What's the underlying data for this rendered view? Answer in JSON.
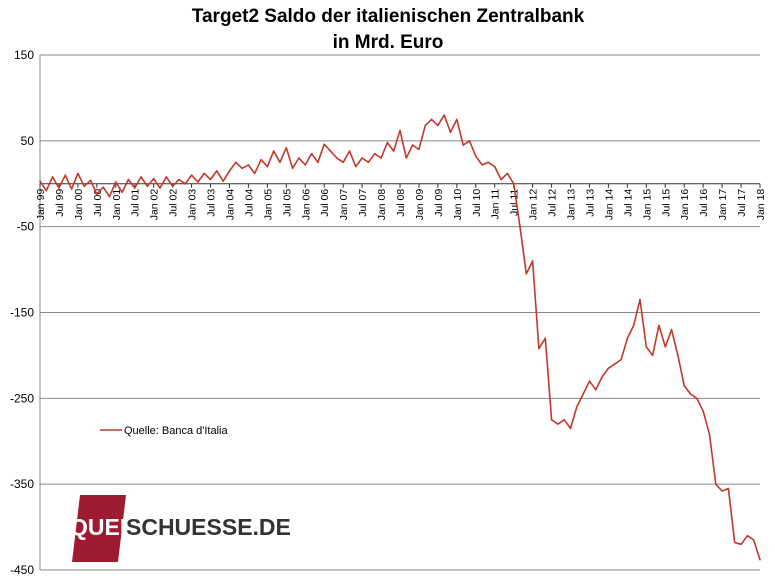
{
  "chart_data": {
    "type": "line",
    "title": "Target2 Saldo der italienischen Zentralbank",
    "subtitle": "in Mrd. Euro",
    "ylim": [
      -450,
      150
    ],
    "yticks": [
      150,
      50,
      -50,
      -150,
      -250,
      -350,
      -450
    ],
    "grid": "horizontal",
    "legend_position": "left",
    "x_tick_labels": [
      "Jan 99",
      "Jul 99",
      "Jan 00",
      "Jul 00",
      "Jan 01",
      "Jul 01",
      "Jan 02",
      "Jul 02",
      "Jan 03",
      "Jul 03",
      "Jan 04",
      "Jul 04",
      "Jan 05",
      "Jul 05",
      "Jan 06",
      "Jul 06",
      "Jan 07",
      "Jul 07",
      "Jan 08",
      "Jul 08",
      "Jan 09",
      "Jul 09",
      "Jan 10",
      "Jul 10",
      "Jan 11",
      "Jul 11",
      "Jan 12",
      "Jul 12",
      "Jan 13",
      "Jul 13",
      "Jan 14",
      "Jul 14",
      "Jan 15",
      "Jul 15",
      "Jan 16",
      "Jul 16",
      "Jan 17",
      "Jul 17",
      "Jan 18"
    ],
    "series": [
      {
        "name": "Quelle: Banca d'Italia",
        "color": "#c0392b",
        "points": [
          [
            "1999-01",
            3
          ],
          [
            "1999-03",
            -8
          ],
          [
            "1999-05",
            8
          ],
          [
            "1999-07",
            -5
          ],
          [
            "1999-09",
            10
          ],
          [
            "1999-11",
            -6
          ],
          [
            "2000-01",
            12
          ],
          [
            "2000-03",
            -3
          ],
          [
            "2000-05",
            4
          ],
          [
            "2000-07",
            -12
          ],
          [
            "2000-09",
            -4
          ],
          [
            "2000-11",
            -15
          ],
          [
            "2001-01",
            2
          ],
          [
            "2001-03",
            -10
          ],
          [
            "2001-05",
            5
          ],
          [
            "2001-07",
            -5
          ],
          [
            "2001-09",
            8
          ],
          [
            "2001-11",
            -3
          ],
          [
            "2002-01",
            6
          ],
          [
            "2002-03",
            -5
          ],
          [
            "2002-05",
            8
          ],
          [
            "2002-07",
            -3
          ],
          [
            "2002-09",
            5
          ],
          [
            "2002-11",
            0
          ],
          [
            "2003-01",
            10
          ],
          [
            "2003-03",
            2
          ],
          [
            "2003-05",
            12
          ],
          [
            "2003-07",
            5
          ],
          [
            "2003-09",
            15
          ],
          [
            "2003-11",
            3
          ],
          [
            "2004-01",
            15
          ],
          [
            "2004-03",
            25
          ],
          [
            "2004-05",
            18
          ],
          [
            "2004-07",
            22
          ],
          [
            "2004-09",
            12
          ],
          [
            "2004-11",
            28
          ],
          [
            "2005-01",
            20
          ],
          [
            "2005-03",
            38
          ],
          [
            "2005-05",
            25
          ],
          [
            "2005-07",
            42
          ],
          [
            "2005-09",
            18
          ],
          [
            "2005-11",
            30
          ],
          [
            "2006-01",
            22
          ],
          [
            "2006-03",
            35
          ],
          [
            "2006-05",
            25
          ],
          [
            "2006-07",
            46
          ],
          [
            "2006-09",
            38
          ],
          [
            "2006-11",
            30
          ],
          [
            "2007-01",
            25
          ],
          [
            "2007-03",
            38
          ],
          [
            "2007-05",
            20
          ],
          [
            "2007-07",
            30
          ],
          [
            "2007-09",
            25
          ],
          [
            "2007-11",
            35
          ],
          [
            "2008-01",
            30
          ],
          [
            "2008-03",
            48
          ],
          [
            "2008-05",
            38
          ],
          [
            "2008-07",
            62
          ],
          [
            "2008-09",
            30
          ],
          [
            "2008-11",
            45
          ],
          [
            "2009-01",
            40
          ],
          [
            "2009-03",
            68
          ],
          [
            "2009-05",
            75
          ],
          [
            "2009-07",
            68
          ],
          [
            "2009-09",
            80
          ],
          [
            "2009-11",
            60
          ],
          [
            "2010-01",
            75
          ],
          [
            "2010-03",
            45
          ],
          [
            "2010-05",
            50
          ],
          [
            "2010-07",
            32
          ],
          [
            "2010-09",
            22
          ],
          [
            "2010-11",
            25
          ],
          [
            "2011-01",
            20
          ],
          [
            "2011-03",
            5
          ],
          [
            "2011-05",
            12
          ],
          [
            "2011-07",
            0
          ],
          [
            "2011-09",
            -50
          ],
          [
            "2011-11",
            -105
          ],
          [
            "2012-01",
            -90
          ],
          [
            "2012-03",
            -192
          ],
          [
            "2012-05",
            -180
          ],
          [
            "2012-07",
            -275
          ],
          [
            "2012-09",
            -280
          ],
          [
            "2012-11",
            -275
          ],
          [
            "2013-01",
            -285
          ],
          [
            "2013-03",
            -260
          ],
          [
            "2013-05",
            -245
          ],
          [
            "2013-07",
            -230
          ],
          [
            "2013-09",
            -240
          ],
          [
            "2013-11",
            -225
          ],
          [
            "2014-01",
            -215
          ],
          [
            "2014-03",
            -210
          ],
          [
            "2014-05",
            -205
          ],
          [
            "2014-07",
            -180
          ],
          [
            "2014-09",
            -165
          ],
          [
            "2014-11",
            -135
          ],
          [
            "2015-01",
            -190
          ],
          [
            "2015-03",
            -200
          ],
          [
            "2015-05",
            -165
          ],
          [
            "2015-07",
            -190
          ],
          [
            "2015-09",
            -170
          ],
          [
            "2015-11",
            -200
          ],
          [
            "2016-01",
            -235
          ],
          [
            "2016-03",
            -245
          ],
          [
            "2016-05",
            -250
          ],
          [
            "2016-07",
            -265
          ],
          [
            "2016-09",
            -292
          ],
          [
            "2016-11",
            -350
          ],
          [
            "2017-01",
            -358
          ],
          [
            "2017-03",
            -355
          ],
          [
            "2017-05",
            -418
          ],
          [
            "2017-07",
            -420
          ],
          [
            "2017-09",
            -410
          ],
          [
            "2017-11",
            -415
          ],
          [
            "2018-01",
            -438
          ]
        ]
      }
    ]
  },
  "logo": {
    "text_left": "QUER",
    "text_right": "SCHUESSE.DE",
    "mark_color": "#9e1b32"
  }
}
